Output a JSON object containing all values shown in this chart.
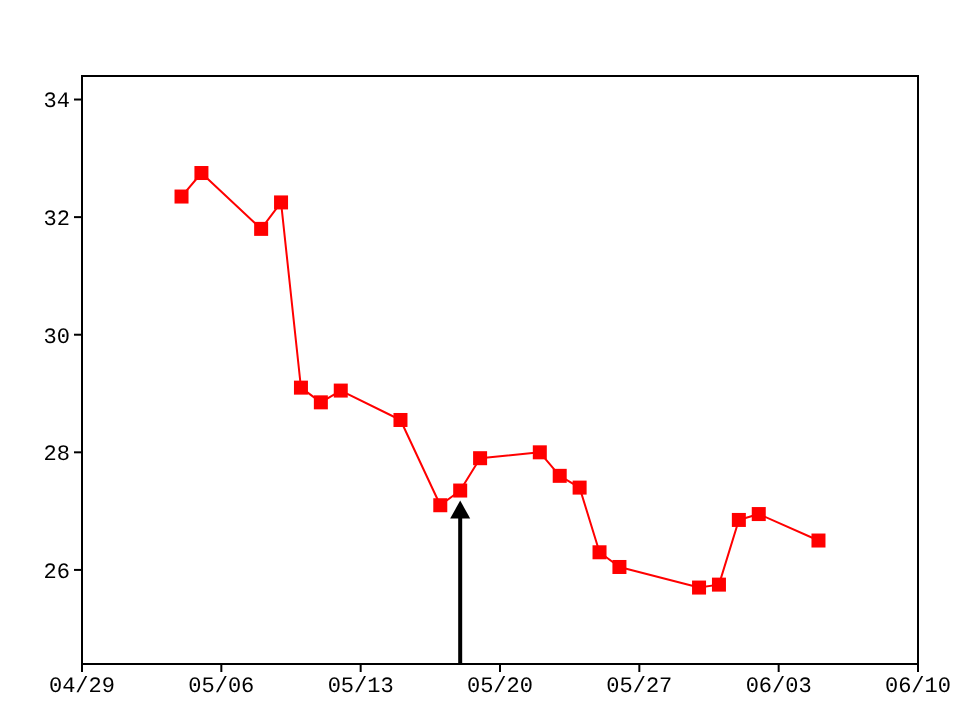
{
  "chart_data": {
    "type": "line",
    "color": "#ff0000",
    "marker": "square",
    "line_style": "solid",
    "x": [
      "--05-04",
      "--05-05",
      "--05-08",
      "--05-09",
      "--05-10",
      "--05-11",
      "--05-12",
      "--05-15",
      "--05-17",
      "--05-18",
      "--05-19",
      "--05-22",
      "--05-23",
      "--05-24",
      "--05-25",
      "--05-26",
      "--05-30",
      "--05-31",
      "--06-01",
      "--06-02",
      "--06-05"
    ],
    "values": [
      32.35,
      32.75,
      31.8,
      32.25,
      29.1,
      28.85,
      29.05,
      28.55,
      27.1,
      27.35,
      27.9,
      28.0,
      27.6,
      27.4,
      26.3,
      26.05,
      25.7,
      25.75,
      26.85,
      26.95,
      26.5
    ],
    "xlim": [
      "--04-29",
      "--06-10"
    ],
    "xticks": [
      {
        "value": "--04-29",
        "label": "04/29"
      },
      {
        "value": "--05-06",
        "label": "05/06"
      },
      {
        "value": "--05-13",
        "label": "05/13"
      },
      {
        "value": "--05-20",
        "label": "05/20"
      },
      {
        "value": "--05-27",
        "label": "05/27"
      },
      {
        "value": "--06-03",
        "label": "06/03"
      },
      {
        "value": "--06-10",
        "label": "06/10"
      }
    ],
    "ylim": [
      24.4,
      34.4
    ],
    "yticks": [
      26,
      28,
      30,
      32,
      34
    ]
  }
}
